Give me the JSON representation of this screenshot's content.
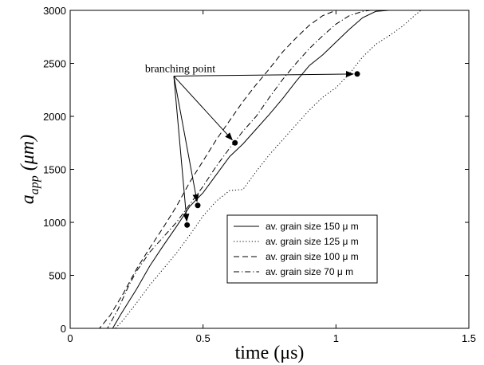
{
  "chart_data": {
    "type": "line",
    "title": "",
    "xlabel": "time (μs)",
    "ylabel_main": "a",
    "ylabel_sub": "app",
    "ylabel_unit": " (μm)",
    "xlim": [
      0,
      1.5
    ],
    "ylim": [
      0,
      3000
    ],
    "xticks": [
      0,
      0.5,
      1,
      1.5
    ],
    "xtick_labels": [
      "0",
      "0.5",
      "1",
      "1.5"
    ],
    "yticks": [
      0,
      500,
      1000,
      1500,
      2000,
      2500,
      3000
    ],
    "ytick_labels": [
      "0",
      "500",
      "1000",
      "1500",
      "2000",
      "2500",
      "3000"
    ],
    "grid": false,
    "legend_position": "lower-right",
    "series": [
      {
        "name": "av. grain size 150 μ m",
        "style": "solid",
        "x": [
          0,
          0.16,
          0.19,
          0.25,
          0.3,
          0.35,
          0.4,
          0.45,
          0.5,
          0.55,
          0.6,
          0.65,
          0.7,
          0.75,
          0.8,
          0.85,
          0.9,
          0.95,
          1.0,
          1.05,
          1.1,
          1.15,
          1.2
        ],
        "y": [
          0,
          0,
          130,
          370,
          590,
          780,
          960,
          1150,
          1280,
          1450,
          1620,
          1740,
          1880,
          2020,
          2170,
          2330,
          2480,
          2580,
          2700,
          2820,
          2930,
          2990,
          3000
        ]
      },
      {
        "name": "av. grain size 125 μ m",
        "style": "dotted",
        "x": [
          0,
          0.17,
          0.2,
          0.25,
          0.3,
          0.35,
          0.4,
          0.45,
          0.5,
          0.55,
          0.6,
          0.65,
          0.7,
          0.75,
          0.8,
          0.85,
          0.9,
          0.95,
          1.0,
          1.05,
          1.1,
          1.15,
          1.2,
          1.25,
          1.3,
          1.32
        ],
        "y": [
          0,
          0,
          80,
          240,
          410,
          560,
          710,
          880,
          1060,
          1200,
          1300,
          1310,
          1480,
          1640,
          1780,
          1920,
          2060,
          2180,
          2270,
          2400,
          2560,
          2680,
          2760,
          2850,
          2960,
          3000
        ]
      },
      {
        "name": "av. grain size 100 μ m",
        "style": "dashed",
        "x": [
          0,
          0.11,
          0.15,
          0.2,
          0.25,
          0.3,
          0.35,
          0.4,
          0.45,
          0.5,
          0.55,
          0.6,
          0.65,
          0.7,
          0.75,
          0.8,
          0.85,
          0.9,
          0.95,
          1.0,
          1.04
        ],
        "y": [
          0,
          0,
          120,
          330,
          560,
          760,
          950,
          1150,
          1380,
          1580,
          1780,
          1960,
          2140,
          2300,
          2450,
          2610,
          2740,
          2860,
          2950,
          3000,
          3000
        ]
      },
      {
        "name": "av. grain size 70 μ m",
        "style": "dashdot",
        "x": [
          0,
          0.14,
          0.18,
          0.22,
          0.25,
          0.3,
          0.35,
          0.4,
          0.45,
          0.5,
          0.55,
          0.6,
          0.65,
          0.7,
          0.75,
          0.8,
          0.85,
          0.9,
          0.95,
          1.0,
          1.05,
          1.1,
          1.13
        ],
        "y": [
          0,
          0,
          180,
          400,
          540,
          720,
          860,
          1000,
          1170,
          1340,
          1530,
          1700,
          1860,
          2000,
          2180,
          2350,
          2500,
          2640,
          2760,
          2870,
          2950,
          2990,
          3000
        ]
      }
    ],
    "annotations": {
      "label": "branching point",
      "source": {
        "x": 0.39,
        "y": 2380
      },
      "targets": [
        {
          "x": 1.08,
          "y": 2400
        },
        {
          "x": 0.62,
          "y": 1750
        },
        {
          "x": 0.48,
          "y": 1160
        },
        {
          "x": 0.44,
          "y": 975
        }
      ]
    }
  }
}
